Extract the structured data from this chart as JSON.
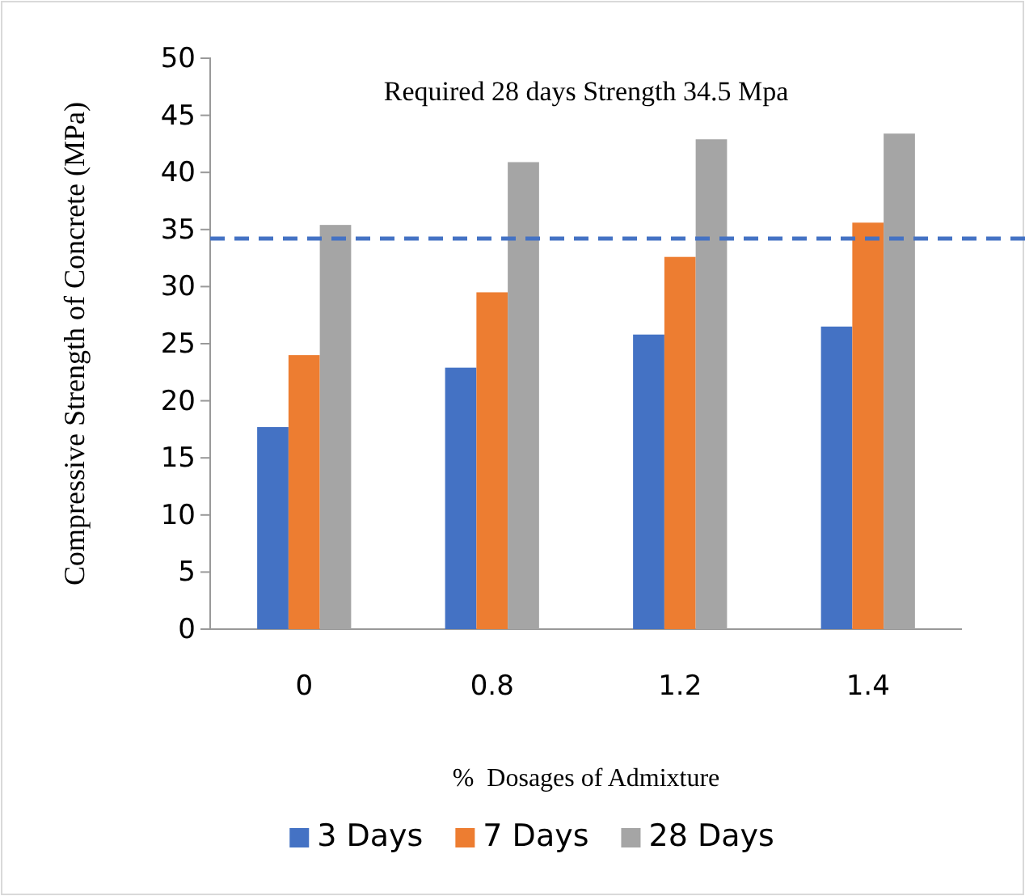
{
  "chart_data": {
    "type": "bar",
    "categories": [
      "0",
      "0.8",
      "1.2",
      "1.4"
    ],
    "series": [
      {
        "name": "3 Days",
        "color": "#4472c4",
        "values": [
          17.7,
          22.9,
          25.8,
          26.5
        ]
      },
      {
        "name": "7 Days",
        "color": "#ed7d31",
        "values": [
          24.0,
          29.5,
          32.6,
          35.6
        ]
      },
      {
        "name": "28 Days",
        "color": "#a5a5a5",
        "values": [
          35.4,
          40.9,
          42.9,
          43.4
        ]
      }
    ],
    "ylim": [
      0,
      50
    ],
    "yticks": [
      0,
      5,
      10,
      15,
      20,
      25,
      30,
      35,
      40,
      45,
      50
    ],
    "xlabel": "%  Dosages of Admixture",
    "ylabel": "Compressive Strength of Concrete (MPa)",
    "annotations": [
      "Required 28 days Strength 34.5 Mpa"
    ],
    "ref_lines": [
      {
        "axis": "y",
        "value": 34.2,
        "color": "#4472c4",
        "line_style": "dashed"
      }
    ],
    "legend": "bottom",
    "grid": false
  }
}
